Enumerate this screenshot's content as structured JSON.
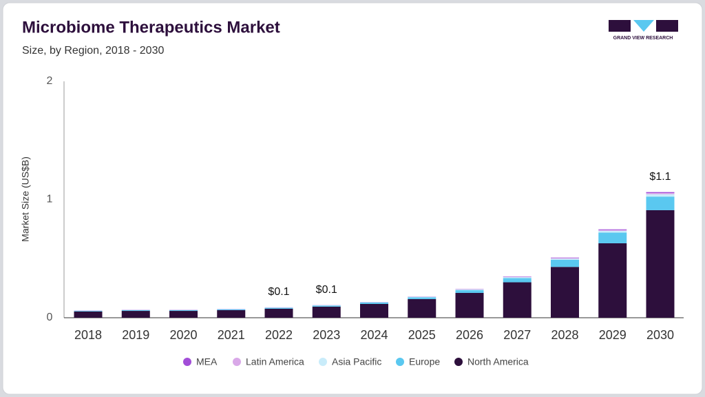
{
  "chart_data": {
    "type": "stacked_bar",
    "title": "Microbiome Therapeutics Market",
    "subtitle": "Size, by Region, 2018 - 2030",
    "y_label": "Market Size (US$B)",
    "logo": "GRAND VIEW RESEARCH",
    "categories": [
      "2018",
      "2019",
      "2020",
      "2021",
      "2022",
      "2023",
      "2024",
      "2025",
      "2026",
      "2027",
      "2028",
      "2029",
      "2030"
    ],
    "series": [
      {
        "name": "North America",
        "color": "#2d0f3c",
        "values": [
          0.053,
          0.058,
          0.058,
          0.064,
          0.076,
          0.094,
          0.117,
          0.158,
          0.21,
          0.3,
          0.43,
          0.63,
          0.91
        ]
      },
      {
        "name": "Europe",
        "color": "#5ac8f0",
        "values": [
          0.005,
          0.006,
          0.006,
          0.007,
          0.008,
          0.009,
          0.012,
          0.015,
          0.023,
          0.035,
          0.06,
          0.09,
          0.115
        ]
      },
      {
        "name": "Asia Pacific",
        "color": "#c9ecfa",
        "values": [
          0.002,
          0.002,
          0.002,
          0.002,
          0.002,
          0.002,
          0.003,
          0.004,
          0.006,
          0.008,
          0.01,
          0.015,
          0.02
        ]
      },
      {
        "name": "Latin America",
        "color": "#d9a8e8",
        "values": [
          0.001,
          0.001,
          0.001,
          0.001,
          0.001,
          0.001,
          0.001,
          0.002,
          0.002,
          0.003,
          0.005,
          0.007,
          0.01
        ]
      },
      {
        "name": "MEA",
        "color": "#a24ed8",
        "values": [
          0.001,
          0.001,
          0.001,
          0.001,
          0.001,
          0.001,
          0.001,
          0.001,
          0.002,
          0.003,
          0.004,
          0.006,
          0.008
        ]
      }
    ],
    "annotations": [
      {
        "category": "2022",
        "value": 0.1,
        "label": "$0.1"
      },
      {
        "category": "2023",
        "value": 0.1,
        "label": "$0.1"
      },
      {
        "category": "2030",
        "value": 1.1,
        "label": "$1.1"
      }
    ],
    "ylim": [
      0,
      2
    ],
    "yticks": [
      0,
      1,
      2
    ],
    "grid": false
  }
}
